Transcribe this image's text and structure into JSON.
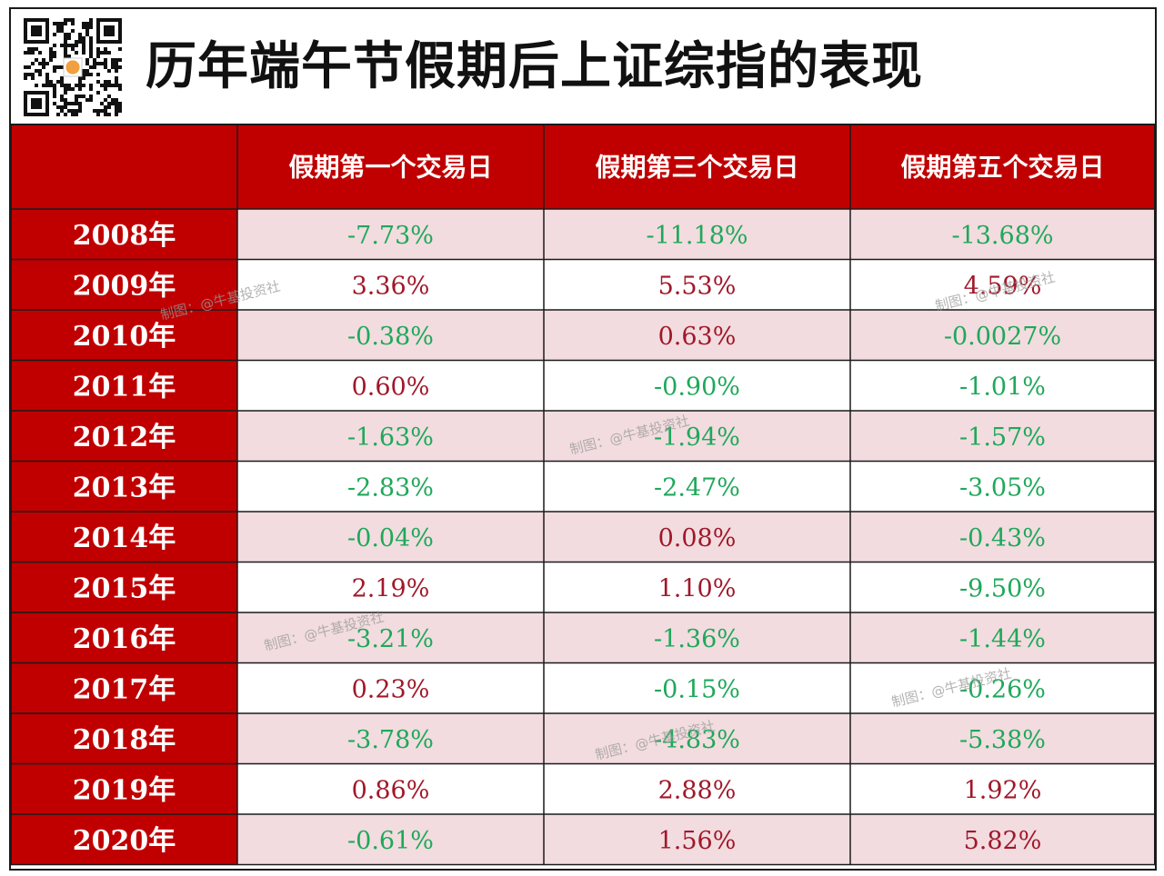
{
  "title": "历年端午节假期后上证综指的表现",
  "watermark": "制图：@牛基投资社",
  "qr_icon": "qr-code-icon",
  "colors": {
    "header_red": "#c00000",
    "row_pink": "#f2dcdf",
    "row_white": "#ffffff",
    "positive": "#a0182a",
    "negative": "#1fa85a"
  },
  "chart_data": {
    "type": "table",
    "title": "历年端午节假期后上证综指的表现",
    "columns": [
      "假期第一个交易日",
      "假期第三个交易日",
      "假期第五个交易日"
    ],
    "rows": [
      {
        "year": "2008年",
        "values": [
          "-7.73%",
          "-11.18%",
          "-13.68%"
        ]
      },
      {
        "year": "2009年",
        "values": [
          "3.36%",
          "5.53%",
          "4.59%"
        ]
      },
      {
        "year": "2010年",
        "values": [
          "-0.38%",
          "0.63%",
          "-0.0027%"
        ]
      },
      {
        "year": "2011年",
        "values": [
          "0.60%",
          "-0.90%",
          "-1.01%"
        ]
      },
      {
        "year": "2012年",
        "values": [
          "-1.63%",
          "-1.94%",
          "-1.57%"
        ]
      },
      {
        "year": "2013年",
        "values": [
          "-2.83%",
          "-2.47%",
          "-3.05%"
        ]
      },
      {
        "year": "2014年",
        "values": [
          "-0.04%",
          "0.08%",
          "-0.43%"
        ]
      },
      {
        "year": "2015年",
        "values": [
          "2.19%",
          "1.10%",
          "-9.50%"
        ]
      },
      {
        "year": "2016年",
        "values": [
          "-3.21%",
          "-1.36%",
          "-1.44%"
        ]
      },
      {
        "year": "2017年",
        "values": [
          "0.23%",
          "-0.15%",
          "-0.26%"
        ]
      },
      {
        "year": "2018年",
        "values": [
          "-3.78%",
          "-4.83%",
          "-5.38%"
        ]
      },
      {
        "year": "2019年",
        "values": [
          "0.86%",
          "2.88%",
          "1.92%"
        ]
      },
      {
        "year": "2020年",
        "values": [
          "-0.61%",
          "1.56%",
          "5.82%"
        ]
      }
    ]
  }
}
